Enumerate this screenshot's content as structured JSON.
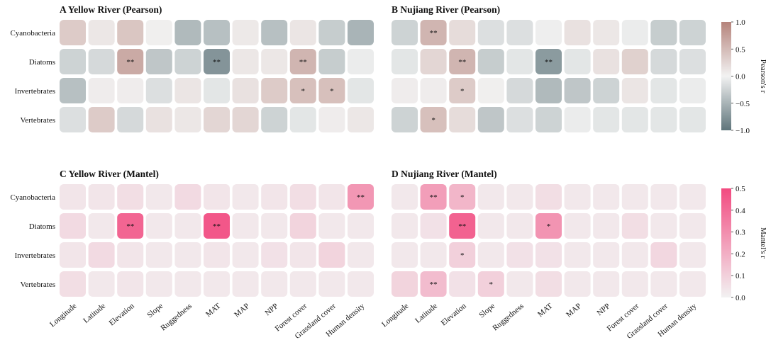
{
  "chart_data": {
    "type": "heatmap",
    "row_labels": [
      "Cyanobacteria",
      "Diatoms",
      "Invertebrates",
      "Vertebrates"
    ],
    "col_labels": [
      "Longitude",
      "Latitude",
      "Elevation",
      "Slope",
      "Ruggedness",
      "MAT",
      "MAP",
      "NPP",
      "Forest cover",
      "Grassland cover",
      "Human density"
    ],
    "panels": [
      {
        "id": "A",
        "title": "A  Yellow River (Pearson)",
        "scale": "pearson",
        "values": [
          [
            0.35,
            0.1,
            0.4,
            0.03,
            -0.45,
            -0.4,
            0.08,
            -0.4,
            0.12,
            -0.3,
            -0.5
          ],
          [
            -0.25,
            -0.2,
            0.65,
            -0.35,
            -0.25,
            -0.75,
            0.1,
            0.1,
            0.55,
            -0.3,
            -0.05
          ],
          [
            -0.4,
            0.05,
            0.05,
            -0.15,
            0.12,
            -0.1,
            0.15,
            0.35,
            0.45,
            0.45,
            -0.1
          ],
          [
            -0.15,
            0.35,
            -0.2,
            0.15,
            0.1,
            0.25,
            0.25,
            -0.25,
            -0.1,
            0.05,
            0.1
          ]
        ],
        "stars": [
          [
            "",
            "",
            "",
            "",
            "",
            "",
            "",
            "",
            "",
            "",
            ""
          ],
          [
            "",
            "",
            "**",
            "",
            "",
            "**",
            "",
            "",
            "**",
            "",
            ""
          ],
          [
            "",
            "",
            "",
            "",
            "",
            "",
            "",
            "",
            "*",
            "*",
            ""
          ],
          [
            "",
            "",
            "",
            "",
            "",
            "",
            "",
            "",
            "",
            "",
            ""
          ]
        ]
      },
      {
        "id": "B",
        "title": "B  Nujiang River (Pearson)",
        "scale": "pearson",
        "values": [
          [
            -0.25,
            0.55,
            0.2,
            -0.15,
            -0.15,
            -0.03,
            0.15,
            0.1,
            -0.05,
            -0.3,
            -0.25
          ],
          [
            -0.1,
            0.25,
            0.55,
            -0.3,
            -0.1,
            -0.7,
            -0.1,
            0.15,
            0.3,
            -0.2,
            -0.15
          ],
          [
            0.05,
            0.05,
            0.35,
            0.03,
            -0.2,
            -0.45,
            -0.35,
            -0.25,
            0.12,
            -0.1,
            -0.05
          ],
          [
            -0.25,
            0.45,
            0.2,
            -0.35,
            -0.15,
            -0.25,
            -0.05,
            -0.1,
            -0.1,
            -0.1,
            -0.1
          ]
        ],
        "stars": [
          [
            "",
            "**",
            "",
            "",
            "",
            "",
            "",
            "",
            "",
            "",
            ""
          ],
          [
            "",
            "",
            "**",
            "",
            "",
            "**",
            "",
            "",
            "",
            "",
            ""
          ],
          [
            "",
            "",
            "*",
            "",
            "",
            "",
            "",
            "",
            "",
            "",
            ""
          ],
          [
            "",
            "*",
            "",
            "",
            "",
            "",
            "",
            "",
            "",
            "",
            ""
          ]
        ]
      },
      {
        "id": "C",
        "title": "C  Yellow River (Mantel)",
        "scale": "mantel",
        "values": [
          [
            0.04,
            0.04,
            0.06,
            0.03,
            0.07,
            0.04,
            0.03,
            0.04,
            0.06,
            0.04,
            0.27
          ],
          [
            0.07,
            0.03,
            0.42,
            0.03,
            0.03,
            0.46,
            0.03,
            0.03,
            0.09,
            0.03,
            0.03
          ],
          [
            0.04,
            0.07,
            0.04,
            0.03,
            0.03,
            0.04,
            0.03,
            0.05,
            0.04,
            0.09,
            0.03
          ],
          [
            0.06,
            0.03,
            0.04,
            0.03,
            0.03,
            0.03,
            0.03,
            0.03,
            0.03,
            0.03,
            0.03
          ]
        ],
        "stars": [
          [
            "",
            "",
            "",
            "",
            "",
            "",
            "",
            "",
            "",
            "",
            "**"
          ],
          [
            "",
            "",
            "**",
            "",
            "",
            "**",
            "",
            "",
            "",
            "",
            ""
          ],
          [
            "",
            "",
            "",
            "",
            "",
            "",
            "",
            "",
            "",
            "",
            ""
          ],
          [
            "",
            "",
            "",
            "",
            "",
            "",
            "",
            "",
            "",
            "",
            ""
          ]
        ]
      },
      {
        "id": "D",
        "title": "D  Nujiang River (Mantel)",
        "scale": "mantel",
        "values": [
          [
            0.03,
            0.25,
            0.18,
            0.03,
            0.03,
            0.06,
            0.03,
            0.03,
            0.03,
            0.03,
            0.03
          ],
          [
            0.03,
            0.05,
            0.43,
            0.03,
            0.03,
            0.28,
            0.03,
            0.03,
            0.06,
            0.03,
            0.03
          ],
          [
            0.03,
            0.03,
            0.1,
            0.03,
            0.05,
            0.05,
            0.03,
            0.03,
            0.03,
            0.08,
            0.03
          ],
          [
            0.09,
            0.16,
            0.05,
            0.1,
            0.03,
            0.06,
            0.03,
            0.03,
            0.03,
            0.03,
            0.03
          ]
        ],
        "stars": [
          [
            "",
            "**",
            "*",
            "",
            "",
            "",
            "",
            "",
            "",
            "",
            ""
          ],
          [
            "",
            "",
            "**",
            "",
            "",
            "*",
            "",
            "",
            "",
            "",
            ""
          ],
          [
            "",
            "",
            "*",
            "",
            "",
            "",
            "",
            "",
            "",
            "",
            ""
          ],
          [
            "",
            "**",
            "",
            "*",
            "",
            "",
            "",
            "",
            "",
            "",
            ""
          ]
        ]
      }
    ],
    "colorbars": [
      {
        "id": "pearson",
        "title": "Pearson's r",
        "range": [
          -1.0,
          1.0
        ],
        "ticks": [
          "1.0",
          "0.5",
          "0.0",
          "−0.5",
          "−1.0"
        ],
        "tick_values": [
          1.0,
          0.5,
          0.0,
          -0.5,
          -1.0
        ],
        "colors": {
          "negative": "#5f757b",
          "neutral": "#f2f2f2",
          "positive": "#b5837b"
        }
      },
      {
        "id": "mantel",
        "title": "Mantel's r",
        "range": [
          0.0,
          0.5
        ],
        "ticks": [
          "0.5",
          "0.4",
          "0.3",
          "0.2",
          "0.1",
          "0.0"
        ],
        "tick_values": [
          0.5,
          0.4,
          0.3,
          0.2,
          0.1,
          0.0
        ],
        "colors": {
          "low": "#f2f2f2",
          "high": "#f24a80"
        }
      }
    ]
  }
}
